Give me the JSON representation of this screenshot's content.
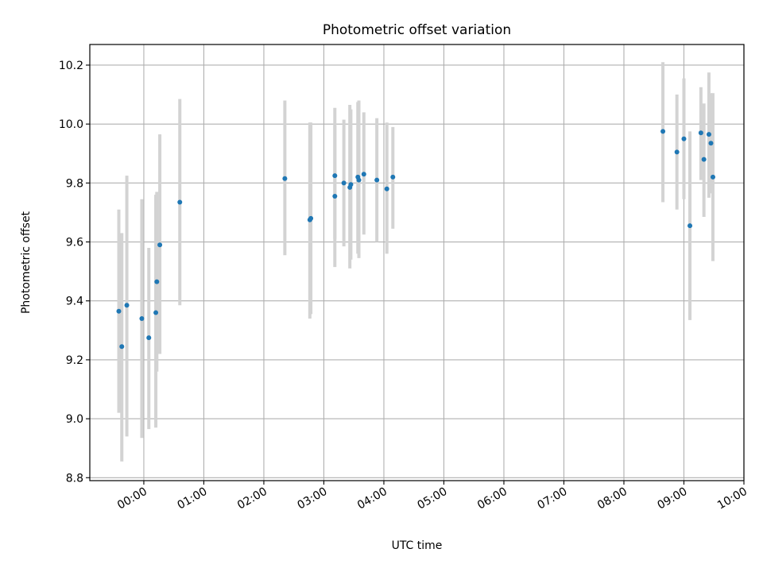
{
  "chart_data": {
    "type": "scatter",
    "title": "Photometric offset variation",
    "xlabel": "UTC time",
    "ylabel": "Photometric offset",
    "xlim": [
      "-0:54",
      "10:00"
    ],
    "ylim": [
      8.79,
      10.27
    ],
    "x_ticks": [
      "00:00",
      "01:00",
      "02:00",
      "03:00",
      "04:00",
      "05:00",
      "06:00",
      "07:00",
      "08:00",
      "09:00",
      "10:00"
    ],
    "y_ticks": [
      "8.8",
      "9.0",
      "9.2",
      "9.4",
      "9.6",
      "9.8",
      "10.0",
      "10.2"
    ],
    "grid": true,
    "point_color": "#1f77b4",
    "errorbar_color": "#d3d3d3",
    "points": [
      {
        "t": "23:35",
        "y": 9.365,
        "lo": 9.02,
        "hi": 9.71
      },
      {
        "t": "23:38",
        "y": 9.245,
        "lo": 8.855,
        "hi": 9.63
      },
      {
        "t": "23:43",
        "y": 9.385,
        "lo": 8.94,
        "hi": 9.825
      },
      {
        "t": "23:58",
        "y": 9.34,
        "lo": 8.935,
        "hi": 9.745
      },
      {
        "t": "00:05",
        "y": 9.275,
        "lo": 8.965,
        "hi": 9.58
      },
      {
        "t": "00:12",
        "y": 9.36,
        "lo": 8.97,
        "hi": 9.76
      },
      {
        "t": "00:13",
        "y": 9.465,
        "lo": 9.16,
        "hi": 9.77
      },
      {
        "t": "00:16",
        "y": 9.59,
        "lo": 9.22,
        "hi": 9.965
      },
      {
        "t": "00:36",
        "y": 9.735,
        "lo": 9.385,
        "hi": 10.085
      },
      {
        "t": "02:21",
        "y": 9.815,
        "lo": 9.555,
        "hi": 10.08
      },
      {
        "t": "02:46",
        "y": 9.675,
        "lo": 9.34,
        "hi": 10.005
      },
      {
        "t": "02:47",
        "y": 9.68,
        "lo": 9.355,
        "hi": 10.005
      },
      {
        "t": "03:11",
        "y": 9.825,
        "lo": 9.61,
        "hi": 10.055
      },
      {
        "t": "03:11",
        "y": 9.755,
        "lo": 9.515,
        "hi": 9.995
      },
      {
        "t": "03:20",
        "y": 9.8,
        "lo": 9.585,
        "hi": 10.015
      },
      {
        "t": "03:26",
        "y": 9.785,
        "lo": 9.51,
        "hi": 10.065
      },
      {
        "t": "03:27",
        "y": 9.795,
        "lo": 9.54,
        "hi": 10.05
      },
      {
        "t": "03:34",
        "y": 9.82,
        "lo": 9.56,
        "hi": 10.075
      },
      {
        "t": "03:35",
        "y": 9.81,
        "lo": 9.545,
        "hi": 10.08
      },
      {
        "t": "03:40",
        "y": 9.83,
        "lo": 9.625,
        "hi": 10.04
      },
      {
        "t": "03:53",
        "y": 9.81,
        "lo": 9.6,
        "hi": 10.02
      },
      {
        "t": "04:03",
        "y": 9.78,
        "lo": 9.56,
        "hi": 10.005
      },
      {
        "t": "04:09",
        "y": 9.82,
        "lo": 9.645,
        "hi": 9.99
      },
      {
        "t": "08:39",
        "y": 9.975,
        "lo": 9.735,
        "hi": 10.21
      },
      {
        "t": "08:53",
        "y": 9.905,
        "lo": 9.71,
        "hi": 10.1
      },
      {
        "t": "09:00",
        "y": 9.95,
        "lo": 9.745,
        "hi": 10.155
      },
      {
        "t": "09:06",
        "y": 9.655,
        "lo": 9.335,
        "hi": 9.975
      },
      {
        "t": "09:17",
        "y": 9.97,
        "lo": 9.81,
        "hi": 10.125
      },
      {
        "t": "09:20",
        "y": 9.88,
        "lo": 9.685,
        "hi": 10.07
      },
      {
        "t": "09:25",
        "y": 9.965,
        "lo": 9.75,
        "hi": 10.175
      },
      {
        "t": "09:27",
        "y": 9.935,
        "lo": 9.765,
        "hi": 10.105
      },
      {
        "t": "09:29",
        "y": 9.82,
        "lo": 9.535,
        "hi": 10.105
      }
    ]
  }
}
